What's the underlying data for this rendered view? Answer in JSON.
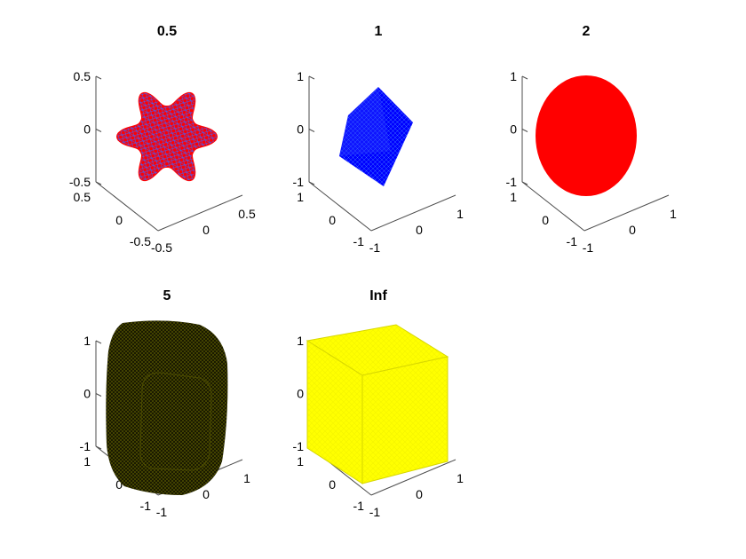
{
  "figure": {
    "background": "#ffffff",
    "axis_color": "#4d4d4d"
  },
  "chart_data": [
    {
      "type": "surface",
      "title": "0.5",
      "shape": "p-norm unit ball, p = 0.5 (astroid-like star)",
      "face_color": "#ff0000",
      "edge_color": "#0000ff",
      "zlim": [
        -0.5,
        0.5
      ],
      "z_ticks": [
        "0.5",
        "0",
        "-0.5"
      ],
      "y_ticks": [
        "0.5",
        "0",
        "-0.5"
      ],
      "x_ticks": [
        "-0.5",
        "0",
        "0.5"
      ]
    },
    {
      "type": "surface",
      "title": "1",
      "shape": "p-norm unit ball, p = 1 (octahedron)",
      "face_color": "#0000ff",
      "edge_color": "#0000ff",
      "zlim": [
        -1,
        1
      ],
      "z_ticks": [
        "1",
        "0",
        "-1"
      ],
      "y_ticks": [
        "1",
        "0",
        "-1"
      ],
      "x_ticks": [
        "-1",
        "0",
        "1"
      ]
    },
    {
      "type": "surface",
      "title": "2",
      "shape": "p-norm unit ball, p = 2 (sphere)",
      "face_color": "#ff0000",
      "edge_color": "#ff0000",
      "zlim": [
        -1,
        1
      ],
      "z_ticks": [
        "1",
        "0",
        "-1"
      ],
      "y_ticks": [
        "1",
        "0",
        "-1"
      ],
      "x_ticks": [
        "-1",
        "0",
        "1"
      ]
    },
    {
      "type": "surface",
      "title": "5",
      "shape": "p-norm unit ball, p = 5 (rounded cube)",
      "face_color": "#ffff00",
      "edge_color": "#000000",
      "zlim": [
        -1,
        1
      ],
      "z_ticks": [
        "1",
        "0",
        "-1"
      ],
      "y_ticks": [
        "1",
        "0",
        "-1"
      ],
      "x_ticks": [
        "-1",
        "0",
        "1"
      ]
    },
    {
      "type": "surface",
      "title": "Inf",
      "shape": "p-norm unit ball, p = Inf (cube)",
      "face_color": "#ffff00",
      "edge_color": "#d6d600",
      "zlim": [
        -1,
        1
      ],
      "z_ticks": [
        "1",
        "0",
        "-1"
      ],
      "y_ticks": [
        "1",
        "0",
        "-1"
      ],
      "x_ticks": [
        "-1",
        "0",
        "1"
      ]
    }
  ]
}
